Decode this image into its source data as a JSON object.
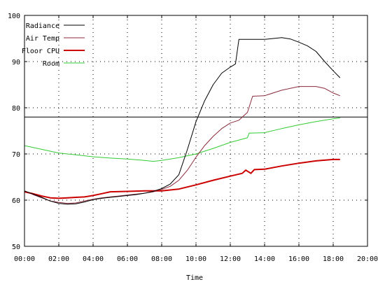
{
  "chart_data": {
    "type": "line",
    "title": "",
    "xlabel": "Time",
    "ylabel": "",
    "xlim": [
      0,
      20
    ],
    "ylim": [
      50,
      100
    ],
    "x_ticks": [
      0,
      2,
      4,
      6,
      8,
      10,
      12,
      14,
      16,
      18,
      20
    ],
    "x_tick_labels": [
      "00:00",
      "02:00",
      "04:00",
      "06:00",
      "08:00",
      "10:00",
      "12:00",
      "14:00",
      "16:00",
      "18:00",
      "20:00"
    ],
    "y_ticks": [
      50,
      60,
      70,
      80,
      90,
      100
    ],
    "y_tick_labels": [
      "50",
      "60",
      "70",
      "80",
      "90",
      "100"
    ],
    "grid": true,
    "legend_position": "top-left",
    "reference_line": {
      "y": 78,
      "color": "#000000"
    },
    "series": [
      {
        "name": "Radiance",
        "color": "#000000",
        "width": 1,
        "points": [
          [
            0,
            62
          ],
          [
            0.5,
            61.3
          ],
          [
            1,
            60.6
          ],
          [
            1.5,
            59.8
          ],
          [
            2,
            59.3
          ],
          [
            2.5,
            59.1
          ],
          [
            3,
            59.2
          ],
          [
            3.5,
            59.6
          ],
          [
            4,
            60.1
          ],
          [
            4.5,
            60.4
          ],
          [
            5,
            60.6
          ],
          [
            5.5,
            60.8
          ],
          [
            6,
            61
          ],
          [
            6.5,
            61.2
          ],
          [
            7,
            61.5
          ],
          [
            7.5,
            61.9
          ],
          [
            8,
            62.5
          ],
          [
            8.5,
            63.5
          ],
          [
            9,
            65.5
          ],
          [
            9.5,
            71
          ],
          [
            10,
            77
          ],
          [
            10.5,
            81.5
          ],
          [
            11,
            85
          ],
          [
            11.5,
            87.5
          ],
          [
            12,
            88.8
          ],
          [
            12.3,
            89.5
          ],
          [
            12.5,
            94.8
          ],
          [
            13,
            94.8
          ],
          [
            14,
            94.8
          ],
          [
            15,
            95.2
          ],
          [
            15.5,
            94.9
          ],
          [
            16,
            94.2
          ],
          [
            16.5,
            93.4
          ],
          [
            17,
            92.2
          ],
          [
            17.5,
            90
          ],
          [
            18,
            88
          ],
          [
            18.4,
            86.5
          ]
        ]
      },
      {
        "name": "Air Temp",
        "color": "#8b2a3c",
        "width": 1,
        "points": [
          [
            0,
            62
          ],
          [
            0.5,
            61.2
          ],
          [
            1,
            60.5
          ],
          [
            1.5,
            59.8
          ],
          [
            2,
            59.5
          ],
          [
            2.5,
            59.3
          ],
          [
            3,
            59.4
          ],
          [
            3.5,
            59.8
          ],
          [
            4,
            60.2
          ],
          [
            4.5,
            60.5
          ],
          [
            5,
            60.7
          ],
          [
            5.5,
            60.9
          ],
          [
            6,
            61.1
          ],
          [
            6.5,
            61.3
          ],
          [
            7,
            61.5
          ],
          [
            7.5,
            61.8
          ],
          [
            8,
            62.3
          ],
          [
            8.5,
            63
          ],
          [
            9,
            64.3
          ],
          [
            9.5,
            66.5
          ],
          [
            10,
            69.3
          ],
          [
            10.5,
            71.8
          ],
          [
            11,
            73.8
          ],
          [
            11.5,
            75.5
          ],
          [
            12,
            76.7
          ],
          [
            12.5,
            77.3
          ],
          [
            13,
            79
          ],
          [
            13.3,
            82.5
          ],
          [
            14,
            82.6
          ],
          [
            15,
            83.8
          ],
          [
            16,
            84.6
          ],
          [
            17,
            84.6
          ],
          [
            17.5,
            84.2
          ],
          [
            18,
            83.2
          ],
          [
            18.4,
            82.6
          ]
        ]
      },
      {
        "name": "Floor CPU",
        "color": "#cc0000",
        "width": 2,
        "points": [
          [
            0,
            61.8
          ],
          [
            0.5,
            61.4
          ],
          [
            1,
            60.9
          ],
          [
            1.5,
            60.5
          ],
          [
            2,
            60.4
          ],
          [
            2.5,
            60.5
          ],
          [
            3,
            60.6
          ],
          [
            3.5,
            60.7
          ],
          [
            4,
            61
          ],
          [
            4.5,
            61.4
          ],
          [
            5,
            61.8
          ],
          [
            6,
            61.9
          ],
          [
            7,
            62
          ],
          [
            8,
            62
          ],
          [
            9,
            62.4
          ],
          [
            10,
            63.3
          ],
          [
            11,
            64.3
          ],
          [
            12,
            65.2
          ],
          [
            12.7,
            65.8
          ],
          [
            12.9,
            66.5
          ],
          [
            13.2,
            65.8
          ],
          [
            13.4,
            66.6
          ],
          [
            14,
            66.7
          ],
          [
            15,
            67.4
          ],
          [
            16,
            68
          ],
          [
            17,
            68.5
          ],
          [
            18,
            68.8
          ],
          [
            18.4,
            68.8
          ]
        ]
      },
      {
        "name": "Room",
        "color": "#33cc33",
        "width": 1,
        "points": [
          [
            0,
            71.8
          ],
          [
            1,
            71
          ],
          [
            2,
            70.2
          ],
          [
            3,
            69.8
          ],
          [
            4,
            69.4
          ],
          [
            5,
            69.1
          ],
          [
            6,
            68.9
          ],
          [
            7,
            68.6
          ],
          [
            7.5,
            68.4
          ],
          [
            8,
            68.6
          ],
          [
            8.5,
            68.9
          ],
          [
            9,
            69.2
          ],
          [
            10,
            70
          ],
          [
            11,
            71.2
          ],
          [
            12,
            72.5
          ],
          [
            13,
            73.5
          ],
          [
            13.1,
            74.5
          ],
          [
            14,
            74.6
          ],
          [
            15,
            75.5
          ],
          [
            16,
            76.3
          ],
          [
            17,
            77
          ],
          [
            18,
            77.6
          ],
          [
            18.4,
            77.8
          ]
        ]
      }
    ]
  }
}
